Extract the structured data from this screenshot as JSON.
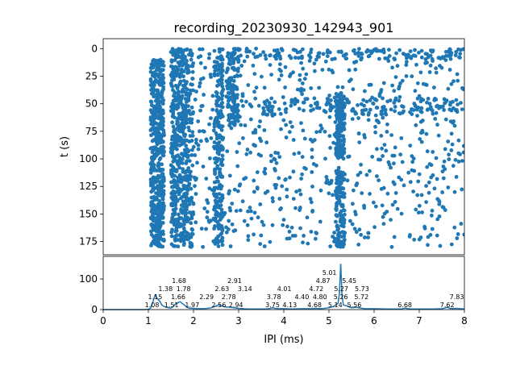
{
  "chart_data": [
    {
      "type": "scatter",
      "title": "recording_20230930_142943_901",
      "xlabel": "",
      "ylabel": "t (s)",
      "xlim": [
        0,
        8
      ],
      "ylim": [
        187,
        -9
      ],
      "yticks": [
        0,
        25,
        50,
        75,
        100,
        125,
        150,
        175
      ],
      "color": "#1f77b4",
      "raster_bands": [
        {
          "x": [
            1.05,
            1.35
          ],
          "t": [
            10,
            180
          ],
          "count": 520
        },
        {
          "x": [
            1.5,
            1.85
          ],
          "t": [
            0,
            180
          ],
          "count": 480
        },
        {
          "x": [
            1.85,
            2.0
          ],
          "t": [
            0,
            180
          ],
          "count": 120
        },
        {
          "x": [
            2.45,
            2.65
          ],
          "t": [
            0,
            180
          ],
          "count": 220
        },
        {
          "x": [
            2.75,
            3.0
          ],
          "t": [
            0,
            70
          ],
          "count": 130
        },
        {
          "x": [
            5.15,
            5.35
          ],
          "t": [
            40,
            100
          ],
          "count": 160
        },
        {
          "x": [
            5.15,
            5.35
          ],
          "t": [
            110,
            180
          ],
          "count": 120
        },
        {
          "x": [
            2.0,
            8.0
          ],
          "t": [
            0,
            180
          ],
          "count": 700
        },
        {
          "x": [
            3.5,
            8.0
          ],
          "t": [
            45,
            60
          ],
          "count": 150
        },
        {
          "x": [
            3.0,
            8.0
          ],
          "t": [
            0,
            10
          ],
          "count": 120
        }
      ]
    },
    {
      "type": "line",
      "xlabel": "IPI (ms)",
      "ylabel": "",
      "xlim": [
        0,
        8
      ],
      "ylim": [
        0,
        174
      ],
      "xticks": [
        0,
        1,
        2,
        3,
        4,
        5,
        6,
        7,
        8
      ],
      "yticks": [
        0,
        100
      ],
      "color": "#1f77b4",
      "x": [
        0,
        0.9,
        1.0,
        1.05,
        1.1,
        1.15,
        1.2,
        1.25,
        1.3,
        1.35,
        1.4,
        1.5,
        1.55,
        1.6,
        1.65,
        1.7,
        1.75,
        1.8,
        1.85,
        1.9,
        2.0,
        2.1,
        2.2,
        2.3,
        2.4,
        2.5,
        2.55,
        2.6,
        2.7,
        2.8,
        2.9,
        3.0,
        3.1,
        3.2,
        3.4,
        3.6,
        3.7,
        3.75,
        3.8,
        3.9,
        4.0,
        4.2,
        4.4,
        4.6,
        4.7,
        4.8,
        4.9,
        5.0,
        5.1,
        5.15,
        5.2,
        5.23,
        5.26,
        5.29,
        5.32,
        5.4,
        5.5,
        5.6,
        5.7,
        5.8,
        6.0,
        6.3,
        6.6,
        6.68,
        6.8,
        7.0,
        7.3,
        7.5,
        7.62,
        7.7,
        7.83,
        8.0
      ],
      "y": [
        0,
        0,
        1,
        5,
        25,
        48,
        35,
        28,
        15,
        10,
        7,
        5,
        10,
        18,
        22,
        26,
        20,
        15,
        8,
        5,
        4,
        3,
        3,
        4,
        6,
        12,
        15,
        13,
        9,
        8,
        6,
        4,
        3,
        2,
        2,
        2,
        4,
        6,
        4,
        3,
        3,
        2,
        3,
        3,
        4,
        3,
        4,
        6,
        10,
        15,
        20,
        50,
        150,
        45,
        15,
        12,
        6,
        8,
        5,
        3,
        3,
        2,
        2,
        5,
        2,
        2,
        2,
        3,
        7,
        3,
        4,
        2
      ],
      "annotations": [
        {
          "label": "1.08",
          "x": 1.08,
          "y": 5
        },
        {
          "label": "1.15",
          "x": 1.15,
          "y": 48
        },
        {
          "label": "1.38",
          "x": 1.38,
          "y": 10
        },
        {
          "label": "1.51",
          "x": 1.51,
          "y": 5
        },
        {
          "label": "1.66",
          "x": 1.66,
          "y": 22
        },
        {
          "label": "1.68",
          "x": 1.68,
          "y": 22
        },
        {
          "label": "1.78",
          "x": 1.78,
          "y": 26
        },
        {
          "label": "1.97",
          "x": 1.97,
          "y": 5
        },
        {
          "label": "2.29",
          "x": 2.29,
          "y": 4
        },
        {
          "label": "2.56",
          "x": 2.56,
          "y": 15
        },
        {
          "label": "2.63",
          "x": 2.63,
          "y": 13
        },
        {
          "label": "2.78",
          "x": 2.78,
          "y": 8
        },
        {
          "label": "2.91",
          "x": 2.91,
          "y": 6
        },
        {
          "label": "2.94",
          "x": 2.94,
          "y": 6
        },
        {
          "label": "3.14",
          "x": 3.14,
          "y": 3
        },
        {
          "label": "3.75",
          "x": 3.75,
          "y": 6
        },
        {
          "label": "3.78",
          "x": 3.78,
          "y": 5
        },
        {
          "label": "4.01",
          "x": 4.01,
          "y": 3
        },
        {
          "label": "4.13",
          "x": 4.13,
          "y": 3
        },
        {
          "label": "4.40",
          "x": 4.4,
          "y": 3
        },
        {
          "label": "4.68",
          "x": 4.68,
          "y": 4
        },
        {
          "label": "4.72",
          "x": 4.72,
          "y": 4
        },
        {
          "label": "4.80",
          "x": 4.8,
          "y": 3
        },
        {
          "label": "4.87",
          "x": 4.87,
          "y": 4
        },
        {
          "label": "5.01",
          "x": 5.01,
          "y": 10
        },
        {
          "label": "5.14",
          "x": 5.14,
          "y": 15
        },
        {
          "label": "5.26",
          "x": 5.26,
          "y": 150
        },
        {
          "label": "5.27",
          "x": 5.27,
          "y": 150
        },
        {
          "label": "5.45",
          "x": 5.45,
          "y": 6
        },
        {
          "label": "5.56",
          "x": 5.56,
          "y": 8
        },
        {
          "label": "5.72",
          "x": 5.72,
          "y": 3
        },
        {
          "label": "5.73",
          "x": 5.73,
          "y": 3
        },
        {
          "label": "6.68",
          "x": 6.68,
          "y": 5
        },
        {
          "label": "7.62",
          "x": 7.62,
          "y": 7
        },
        {
          "label": "7.83",
          "x": 7.83,
          "y": 4
        }
      ]
    }
  ]
}
